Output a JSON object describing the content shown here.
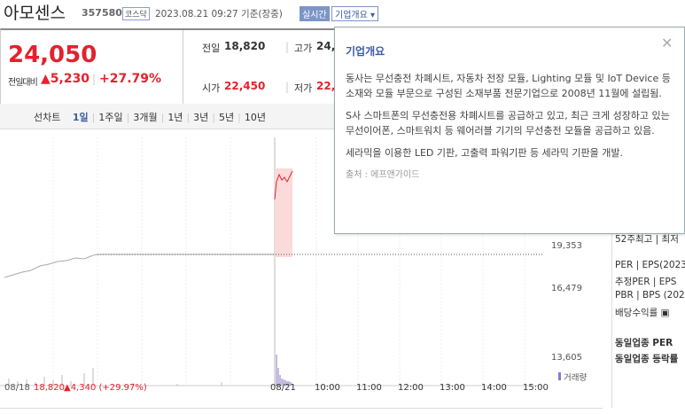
{
  "header": {
    "name": "아모센스",
    "code": "357580",
    "market": "코스닥",
    "timestamp": "2023.08.21 09:27 기준(장중)",
    "realtime": "실시간",
    "overview_button": "기업개요"
  },
  "quote": {
    "price": "24,050",
    "change_label": "전일대비",
    "change": "▲5,230",
    "change_pct": "+27.79%",
    "fields": [
      {
        "label": "전일",
        "value": "18,820"
      },
      {
        "label": "고가",
        "value": "24,"
      },
      {
        "label": "시가",
        "value": "22,450"
      },
      {
        "label": "저가",
        "value": "22,"
      }
    ]
  },
  "chart_tabs": {
    "type_label": "선차트",
    "periods": [
      "1일",
      "1주일",
      "3개월",
      "1년",
      "3년",
      "5년",
      "10년"
    ]
  },
  "chart": {
    "yticks": [
      "19,353",
      "16,479",
      "13,605"
    ],
    "volume_label": "거래량",
    "prev_date": "08/18",
    "prev_close": "18,820",
    "prev_change": "▲4,340 (+29.97%)",
    "xlabels": [
      "08/21",
      "10:00",
      "11:00",
      "12:00",
      "13:00",
      "14:00",
      "15:00"
    ]
  },
  "side_panel": [
    "52주최고 | 최저",
    "PER | EPS(2023",
    "추정PER | EPS",
    "PBR | BPS (202",
    "배당수익률 ▣",
    "동일업종 PER",
    "동일업종 등락률"
  ],
  "popup": {
    "title": "기업개요",
    "paragraphs": [
      "동사는 무선충전 차폐시트, 자동차 전장 모듈, Lighting 모듈 및 IoT Device 등 소재와 모듈 부문으로 구성된 소재부품 전문기업으로 2008년 11월에 설립됨.",
      "S사 스마트폰의 무선충전용 차폐시트를 공급하고 있고, 최근 크게 성장하고 있는 무선이어폰, 스마트워치 등 웨어러블 기기의 무선충전 모듈을 공급하고 있음.",
      "세라믹을 이용한 LED 기판, 고출력 파워기판 등 세라믹 기판을 개발."
    ],
    "source": "출처 : 에프앤가이드"
  }
}
